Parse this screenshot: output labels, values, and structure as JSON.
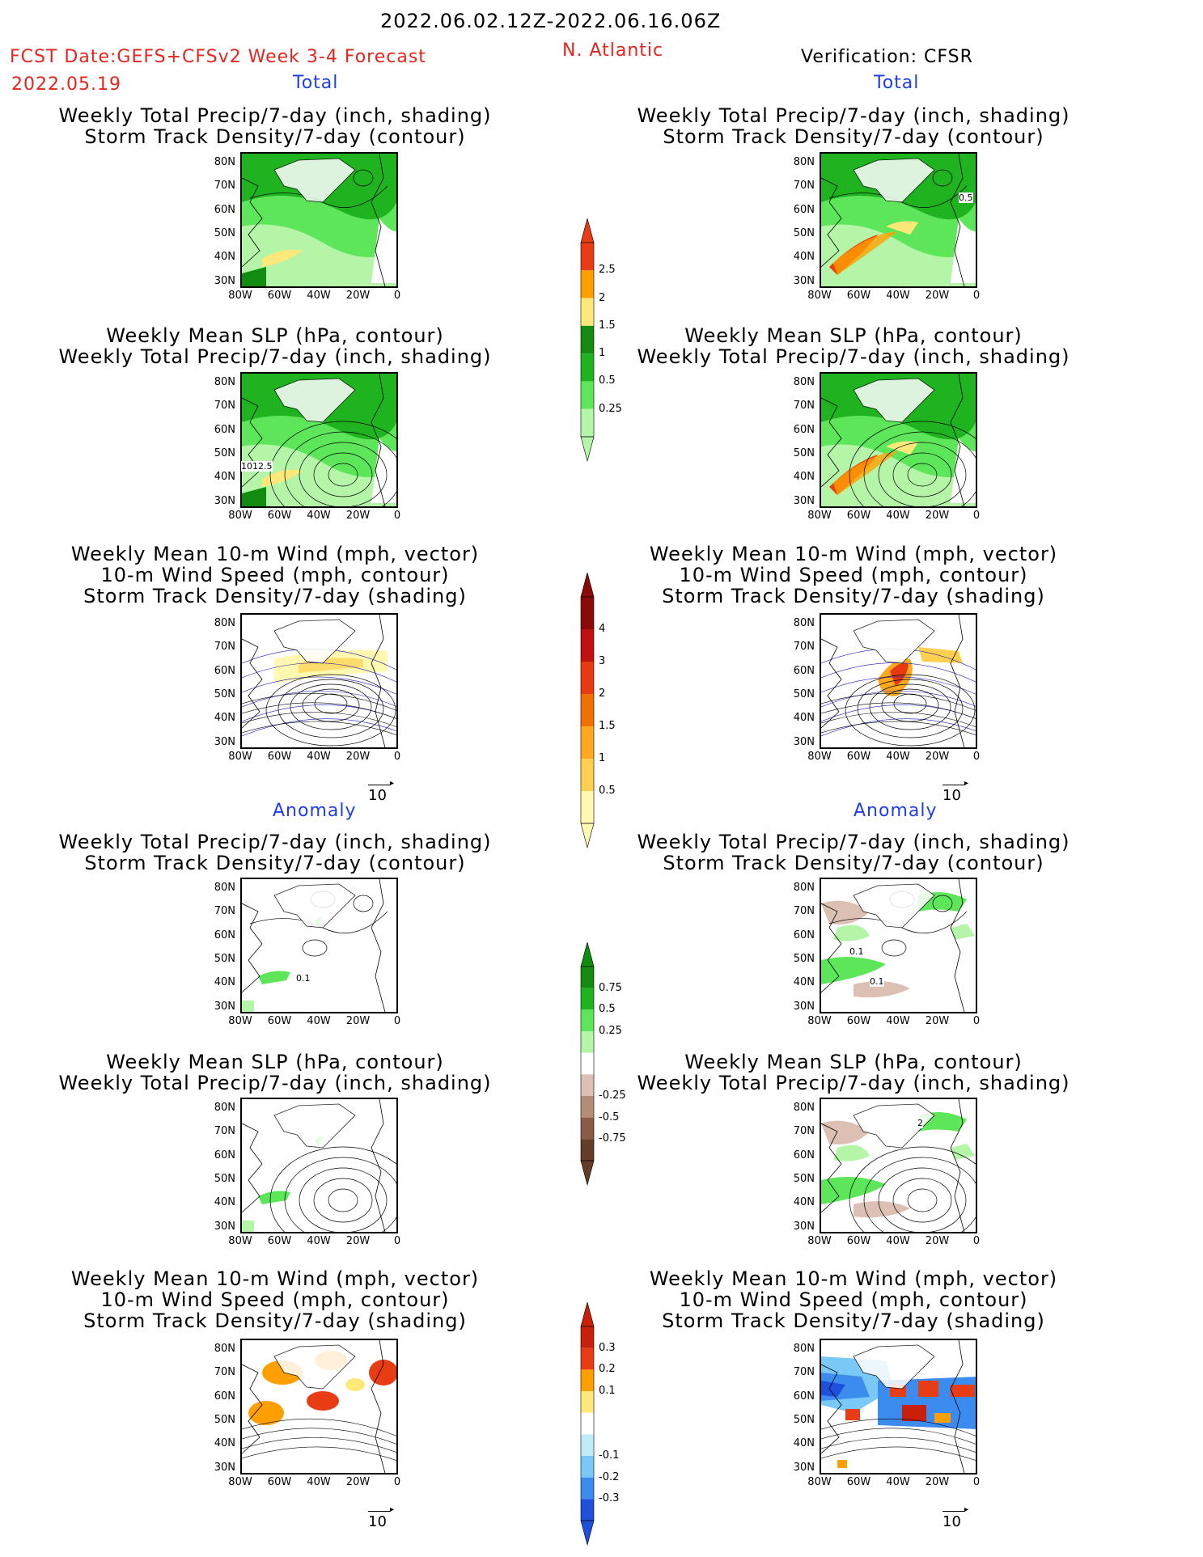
{
  "header": {
    "period": "2022.06.02.12Z-2022.06.16.06Z",
    "fcst_line": "FCST Date:GEFS+CFSv2 Week 3-4 Forecast",
    "fcst_date": "2022.05.19",
    "region": "N. Atlantic",
    "verification": "Verification: CFSR",
    "total_label": "Total",
    "anomaly_label": "Anomaly"
  },
  "panel_titles": {
    "precip_storm": [
      "Weekly Total Precip/7-day (inch, shading)",
      "Storm Track Density/7-day (contour)"
    ],
    "slp_precip": [
      "Weekly Mean SLP (hPa, contour)",
      "Weekly Total Precip/7-day (inch, shading)"
    ],
    "wind_storm": [
      "Weekly Mean 10-m Wind (mph, vector)",
      "10-m Wind Speed (mph, contour)",
      "Storm Track Density/7-day (shading)"
    ]
  },
  "axes": {
    "lat_labels": [
      "80N",
      "70N",
      "60N",
      "50N",
      "40N",
      "30N"
    ],
    "lon_labels": [
      "80W",
      "60W",
      "40W",
      "20W",
      "0"
    ]
  },
  "contour_labels": {
    "cfsr_total_storm": "0.5",
    "fcst_total_slp": "1012.5",
    "fcst_anom_storm": "0.1",
    "cfsr_anom_storm_a": "0.1",
    "cfsr_anom_storm_b": "0.1",
    "cfsr_anom_slp": "2"
  },
  "vector_ref": "10",
  "colorbars": {
    "precip_total": [
      "0.25",
      "0.5",
      "1",
      "1.5",
      "2",
      "2.5"
    ],
    "storm_total": [
      "0.5",
      "1",
      "1.5",
      "2",
      "3",
      "4"
    ],
    "precip_anom": [
      "-0.75",
      "-0.5",
      "-0.25",
      "0.25",
      "0.5",
      "0.75"
    ],
    "storm_anom": [
      "-0.3",
      "-0.2",
      "-0.1",
      "0.1",
      "0.2",
      "0.3"
    ]
  },
  "colors": {
    "precip_total": [
      "#b4f5a8",
      "#5ee65a",
      "#1fb41f",
      "#118c11",
      "#ffe87a",
      "#ffa000",
      "#e83c14"
    ],
    "storm_total": [
      "#fff8b0",
      "#ffd050",
      "#ffa820",
      "#f07000",
      "#e83a10",
      "#c01010",
      "#8a0a0a"
    ],
    "precip_anom": [
      "#643c28",
      "#8c5a46",
      "#b48c78",
      "#dcc0b4",
      "#ffffff",
      "#b4f5a8",
      "#5ee65a",
      "#1fb41f",
      "#118c11"
    ],
    "storm_anom": [
      "#1e50dc",
      "#3c8cf0",
      "#7ac8f5",
      "#c0ecf8",
      "#ffffff",
      "#ffe87a",
      "#ffa000",
      "#e83c14",
      "#c8200a"
    ]
  }
}
